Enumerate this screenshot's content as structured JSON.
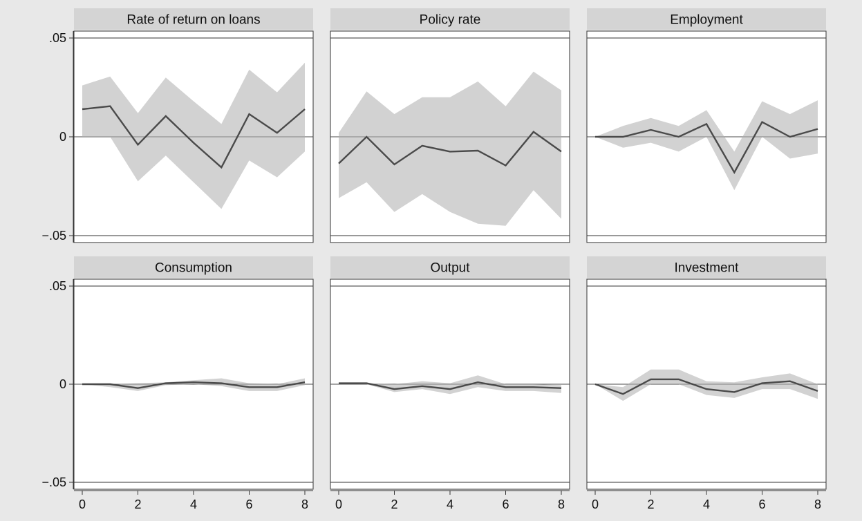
{
  "chart_data": {
    "type": "area",
    "layout": "3x2 small multiples with shared axes",
    "xlim": [
      0,
      8
    ],
    "ylim": [
      -0.05,
      0.05
    ],
    "x_ticks": [
      0,
      2,
      4,
      6,
      8
    ],
    "x_tick_labels": [
      "0",
      "2",
      "4",
      "6",
      "8"
    ],
    "y_ticks": [
      0.05,
      0,
      -0.05
    ],
    "y_tick_labels": [
      ".05",
      "0",
      "−.05"
    ],
    "colors": {
      "background": "#e8e8e8",
      "plot_area": "#ffffff",
      "title_strip": "#d4d4d4",
      "band": "#d2d2d2",
      "line": "#4a4a4a",
      "gridline": "#333333"
    },
    "panels": [
      {
        "title": "Rate of return on loans",
        "x": [
          0,
          1,
          2,
          3,
          4,
          5,
          6,
          7,
          8
        ],
        "irf": [
          0.014,
          0.0155,
          -0.004,
          0.0105,
          -0.003,
          -0.0155,
          0.0115,
          0.002,
          0.014
        ],
        "upper": [
          0.026,
          0.0305,
          0.012,
          0.03,
          0.018,
          0.0065,
          0.034,
          0.0225,
          0.0375
        ],
        "lower": [
          0.0,
          0.0,
          -0.0225,
          -0.0095,
          -0.023,
          -0.0365,
          -0.012,
          -0.0205,
          -0.0075
        ]
      },
      {
        "title": "Policy rate",
        "x": [
          0,
          1,
          2,
          3,
          4,
          5,
          6,
          7,
          8
        ],
        "irf": [
          -0.0135,
          0.0,
          -0.014,
          -0.0045,
          -0.0075,
          -0.007,
          -0.0145,
          0.0025,
          -0.0075
        ],
        "upper": [
          0.002,
          0.023,
          0.0115,
          0.02,
          0.02,
          0.028,
          0.0155,
          0.033,
          0.0235
        ],
        "lower": [
          -0.031,
          -0.023,
          -0.038,
          -0.029,
          -0.038,
          -0.044,
          -0.045,
          -0.027,
          -0.0415
        ]
      },
      {
        "title": "Employment",
        "x": [
          0,
          1,
          2,
          3,
          4,
          5,
          6,
          7,
          8
        ],
        "irf": [
          0.0,
          0.0,
          0.0035,
          0.0,
          0.0065,
          -0.018,
          0.0075,
          0.0,
          0.004
        ],
        "upper": [
          0.0,
          0.0055,
          0.0095,
          0.0055,
          0.0135,
          -0.0075,
          0.018,
          0.0115,
          0.0185
        ],
        "lower": [
          0.0,
          -0.0055,
          -0.003,
          -0.0075,
          0.0,
          -0.027,
          0.0,
          -0.011,
          -0.0085
        ]
      },
      {
        "title": "Consumption",
        "x": [
          0,
          1,
          2,
          3,
          4,
          5,
          6,
          7,
          8
        ],
        "irf": [
          0.0,
          0.0,
          -0.002,
          0.0005,
          0.001,
          0.0005,
          -0.0015,
          -0.0015,
          0.001
        ],
        "upper": [
          0.0,
          0.0,
          0.0005,
          0.001,
          0.002,
          0.003,
          0.0005,
          0.0,
          0.003
        ],
        "lower": [
          0.0,
          -0.0015,
          -0.0035,
          -0.0005,
          0.0,
          -0.001,
          -0.0035,
          -0.0035,
          -0.0005
        ]
      },
      {
        "title": "Output",
        "x": [
          0,
          1,
          2,
          3,
          4,
          5,
          6,
          7,
          8
        ],
        "irf": [
          0.0005,
          0.0005,
          -0.0025,
          -0.001,
          -0.0025,
          0.001,
          -0.0015,
          -0.0015,
          -0.002
        ],
        "upper": [
          0.0005,
          0.0005,
          0.0,
          0.0015,
          0.0005,
          0.0045,
          0.0,
          0.0,
          -0.0005
        ],
        "lower": [
          0.0005,
          0.0,
          -0.004,
          -0.0025,
          -0.005,
          -0.0015,
          -0.0035,
          -0.0035,
          -0.0045
        ]
      },
      {
        "title": "Investment",
        "x": [
          0,
          1,
          2,
          3,
          4,
          5,
          6,
          7,
          8
        ],
        "irf": [
          0.0,
          -0.005,
          0.0025,
          0.0025,
          -0.0025,
          -0.004,
          0.0005,
          0.0015,
          -0.0035
        ],
        "upper": [
          0.0,
          -0.0015,
          0.0075,
          0.0075,
          0.0015,
          0.001,
          0.0035,
          0.0055,
          0.0
        ],
        "lower": [
          0.0,
          -0.0085,
          0.0,
          0.0,
          -0.0055,
          -0.007,
          -0.0025,
          -0.0025,
          -0.0075
        ]
      }
    ]
  }
}
